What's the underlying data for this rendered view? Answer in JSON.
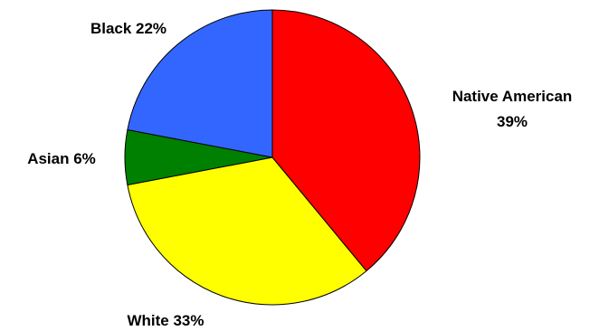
{
  "chart_data": {
    "type": "pie",
    "title": "",
    "slices": [
      {
        "name": "Native American",
        "label_line1": "Native American",
        "label_line2": "39%",
        "value": 39,
        "color": "#ff0000"
      },
      {
        "name": "White",
        "label_line1": "White  33%",
        "label_line2": "",
        "value": 33,
        "color": "#ffff00"
      },
      {
        "name": "Asian",
        "label_line1": "Asian  6%",
        "label_line2": "",
        "value": 6,
        "color": "#008000"
      },
      {
        "name": "Black",
        "label_line1": "Black  22%",
        "label_line2": "",
        "value": 22,
        "color": "#3366ff"
      }
    ],
    "start_angle_deg": 0,
    "direction": "clockwise",
    "legend": "none"
  }
}
